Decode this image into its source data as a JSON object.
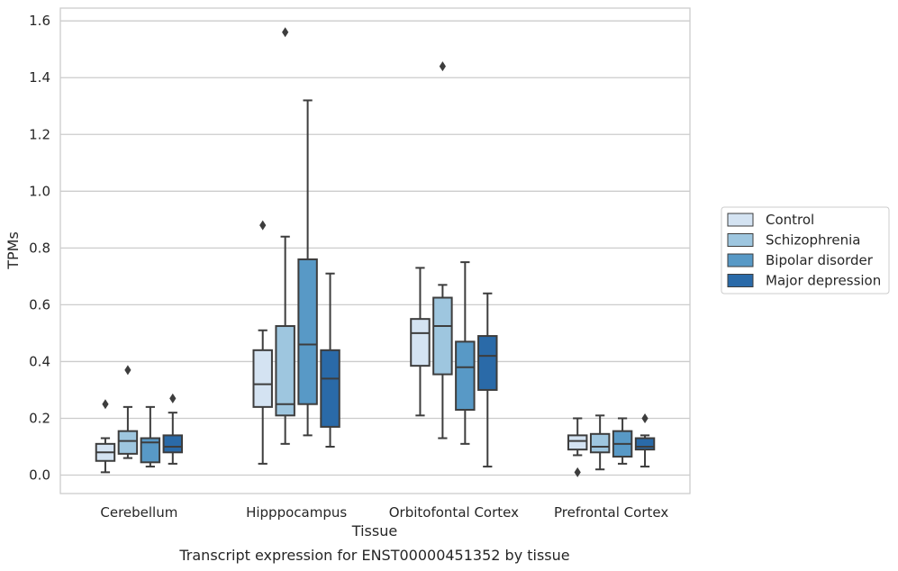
{
  "caption": "Transcript expression for ENST00000451352 by tissue",
  "chart_data": {
    "type": "box",
    "title": "",
    "xlabel": "Tissue",
    "ylabel": "TPMs",
    "ylim": [
      -0.065,
      1.645
    ],
    "yticks": [
      0.0,
      0.2,
      0.4,
      0.6,
      0.8,
      1.0,
      1.2,
      1.4,
      1.6
    ],
    "ytick_labels": [
      "0.0",
      "0.2",
      "0.4",
      "0.6",
      "0.8",
      "1.0",
      "1.2",
      "1.4",
      "1.6"
    ],
    "grid": "horizontal",
    "legend_position": "right",
    "categories": [
      "Cerebellum",
      "Hipppocampus",
      "Orbitofontal Cortex",
      "Prefrontal Cortex"
    ],
    "series": [
      {
        "name": "Control",
        "color": "#d4e3f2",
        "boxes": [
          {
            "whislo": 0.01,
            "q1": 0.05,
            "med": 0.08,
            "q3": 0.11,
            "whishi": 0.13,
            "fliers": [
              0.25
            ]
          },
          {
            "whislo": 0.04,
            "q1": 0.24,
            "med": 0.32,
            "q3": 0.44,
            "whishi": 0.51,
            "fliers": [
              0.88
            ]
          },
          {
            "whislo": 0.21,
            "q1": 0.385,
            "med": 0.5,
            "q3": 0.55,
            "whishi": 0.73,
            "fliers": []
          },
          {
            "whislo": 0.07,
            "q1": 0.09,
            "med": 0.12,
            "q3": 0.14,
            "whishi": 0.2,
            "fliers": [
              0.01
            ]
          }
        ]
      },
      {
        "name": "Schizophrenia",
        "color": "#9ec6df",
        "boxes": [
          {
            "whislo": 0.06,
            "q1": 0.075,
            "med": 0.12,
            "q3": 0.155,
            "whishi": 0.24,
            "fliers": [
              0.37
            ]
          },
          {
            "whislo": 0.11,
            "q1": 0.21,
            "med": 0.25,
            "q3": 0.525,
            "whishi": 0.84,
            "fliers": [
              1.56
            ]
          },
          {
            "whislo": 0.13,
            "q1": 0.355,
            "med": 0.525,
            "q3": 0.625,
            "whishi": 0.67,
            "fliers": [
              1.44
            ]
          },
          {
            "whislo": 0.02,
            "q1": 0.08,
            "med": 0.1,
            "q3": 0.145,
            "whishi": 0.21,
            "fliers": []
          }
        ]
      },
      {
        "name": "Bipolar disorder",
        "color": "#5899c6",
        "boxes": [
          {
            "whislo": 0.03,
            "q1": 0.045,
            "med": 0.115,
            "q3": 0.13,
            "whishi": 0.24,
            "fliers": []
          },
          {
            "whislo": 0.14,
            "q1": 0.25,
            "med": 0.46,
            "q3": 0.76,
            "whishi": 1.32,
            "fliers": []
          },
          {
            "whislo": 0.11,
            "q1": 0.23,
            "med": 0.38,
            "q3": 0.47,
            "whishi": 0.75,
            "fliers": []
          },
          {
            "whislo": 0.04,
            "q1": 0.065,
            "med": 0.11,
            "q3": 0.155,
            "whishi": 0.2,
            "fliers": []
          }
        ]
      },
      {
        "name": "Major depression",
        "color": "#2a6aa8",
        "boxes": [
          {
            "whislo": 0.04,
            "q1": 0.08,
            "med": 0.1,
            "q3": 0.14,
            "whishi": 0.22,
            "fliers": [
              0.27
            ]
          },
          {
            "whislo": 0.1,
            "q1": 0.17,
            "med": 0.34,
            "q3": 0.44,
            "whishi": 0.71,
            "fliers": []
          },
          {
            "whislo": 0.03,
            "q1": 0.3,
            "med": 0.42,
            "q3": 0.49,
            "whishi": 0.64,
            "fliers": []
          },
          {
            "whislo": 0.03,
            "q1": 0.09,
            "med": 0.1,
            "q3": 0.13,
            "whishi": 0.14,
            "fliers": [
              0.2
            ]
          }
        ]
      }
    ]
  },
  "colors": {
    "box_edge": "#3d3d3d",
    "grid": "#cccccc",
    "frame": "#cccccc",
    "text": "#262626"
  }
}
